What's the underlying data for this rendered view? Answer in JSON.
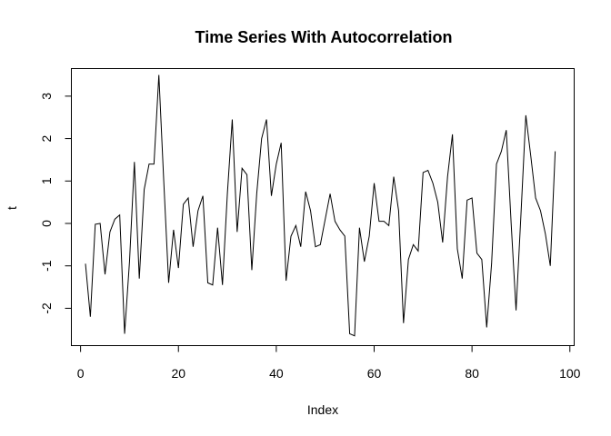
{
  "chart_data": {
    "type": "line",
    "title": "Time Series With Autocorrelation",
    "xlabel": "Index",
    "ylabel": "t",
    "xlim": [
      -1.88,
      100.88
    ],
    "ylim": [
      -2.88,
      3.65
    ],
    "xticks": [
      0,
      20,
      40,
      60,
      80,
      100
    ],
    "yticks": [
      -2,
      -1,
      0,
      1,
      2,
      3
    ],
    "grid": false,
    "legend": "none",
    "series": [
      {
        "x": [
          1,
          2,
          3,
          4,
          5,
          6,
          7,
          8,
          9,
          10,
          11,
          12,
          13,
          14,
          15,
          16,
          17,
          18,
          19,
          20,
          21,
          22,
          23,
          24,
          25,
          26,
          27,
          28,
          29,
          30,
          31,
          32,
          33,
          34,
          35,
          36,
          37,
          38,
          39,
          40,
          41,
          42,
          43,
          44,
          45,
          46,
          47,
          48,
          49,
          50,
          51,
          52,
          53,
          54,
          55,
          56,
          57,
          58,
          59,
          60,
          61,
          62,
          63,
          64,
          65,
          66,
          67,
          68,
          69,
          70,
          71,
          72,
          73,
          74,
          75,
          76,
          77,
          78,
          79,
          80,
          81,
          82,
          83,
          84,
          85,
          86,
          87,
          88,
          89,
          90,
          91,
          92,
          93,
          94,
          95,
          96,
          97
        ],
        "values": [
          -0.95,
          -2.2,
          -0.02,
          0.0,
          -1.2,
          -0.2,
          0.1,
          0.2,
          -2.6,
          -0.9,
          1.45,
          -1.3,
          0.8,
          1.4,
          1.4,
          3.5,
          1.0,
          -1.4,
          -0.15,
          -1.05,
          0.45,
          0.6,
          -0.55,
          0.3,
          0.65,
          -1.4,
          -1.45,
          -0.1,
          -1.45,
          0.7,
          2.45,
          -0.2,
          1.3,
          1.15,
          -1.1,
          0.7,
          2.0,
          2.45,
          0.65,
          1.4,
          1.9,
          -1.35,
          -0.3,
          -0.05,
          -0.55,
          0.75,
          0.3,
          -0.55,
          -0.5,
          0.1,
          0.7,
          0.05,
          -0.15,
          -0.3,
          -2.6,
          -2.65,
          -0.1,
          -0.9,
          -0.3,
          0.95,
          0.05,
          0.05,
          -0.05,
          1.1,
          0.3,
          -2.35,
          -0.85,
          -0.5,
          -0.65,
          1.2,
          1.25,
          0.95,
          0.5,
          -0.45,
          1.1,
          2.1,
          -0.6,
          -1.3,
          0.55,
          0.6,
          -0.7,
          -0.85,
          -2.45,
          -0.95,
          1.4,
          1.7,
          2.2,
          0.0,
          -2.05,
          0.2,
          2.55,
          1.6,
          0.6,
          0.3,
          -0.25,
          -1.0,
          1.7
        ]
      }
    ]
  }
}
